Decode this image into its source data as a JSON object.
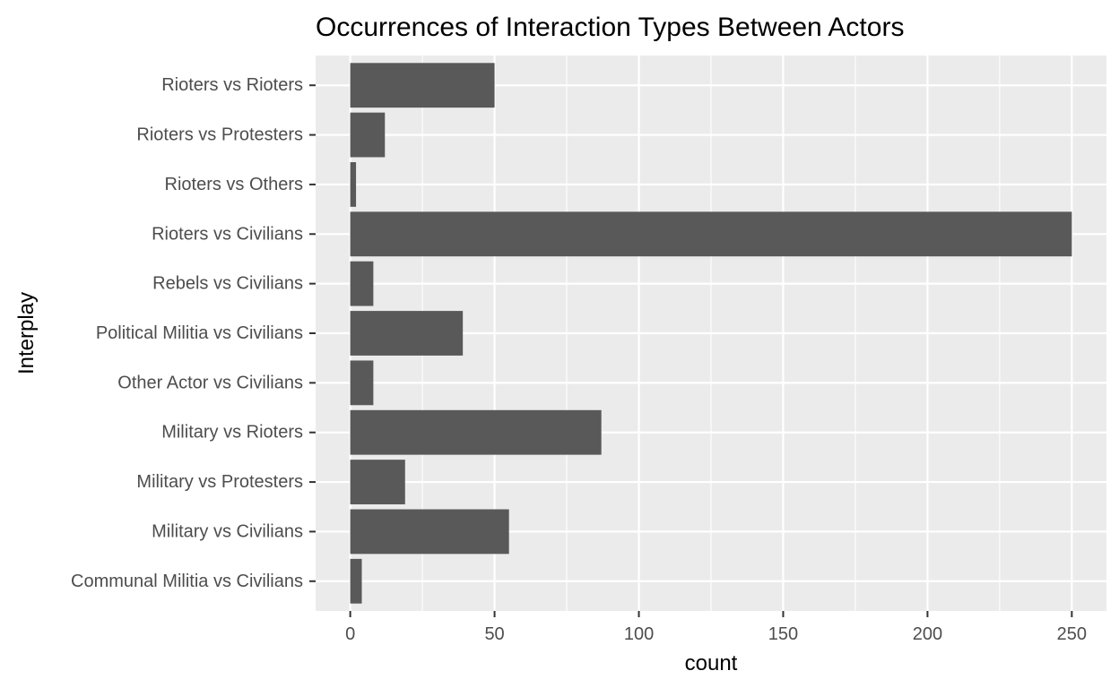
{
  "chart_data": {
    "type": "bar",
    "orientation": "horizontal",
    "title": "Occurrences of Interaction Types Between Actors",
    "xlabel": "count",
    "ylabel": "Interplay",
    "categories": [
      "Rioters vs Rioters",
      "Rioters vs Protesters",
      "Rioters vs Others",
      "Rioters vs Civilians",
      "Rebels vs Civilians",
      "Political Militia vs Civilians",
      "Other Actor vs Civilians",
      "Military vs Rioters",
      "Military vs Protesters",
      "Military vs Civilians",
      "Communal Militia vs Civilians"
    ],
    "values": [
      50,
      12,
      2,
      250,
      8,
      39,
      8,
      87,
      19,
      55,
      4
    ],
    "xlim": [
      -12,
      262
    ],
    "xticks": [
      0,
      50,
      100,
      150,
      200,
      250
    ],
    "xtick_labels": [
      "0",
      "50",
      "100",
      "150",
      "200",
      "250"
    ],
    "grid": true,
    "legend": "none",
    "colors": {
      "bar": "#595959",
      "panel": "#ebebeb",
      "grid": "#ffffff",
      "tick_label": "#4d4d4d",
      "tick_mark": "#333333"
    }
  }
}
